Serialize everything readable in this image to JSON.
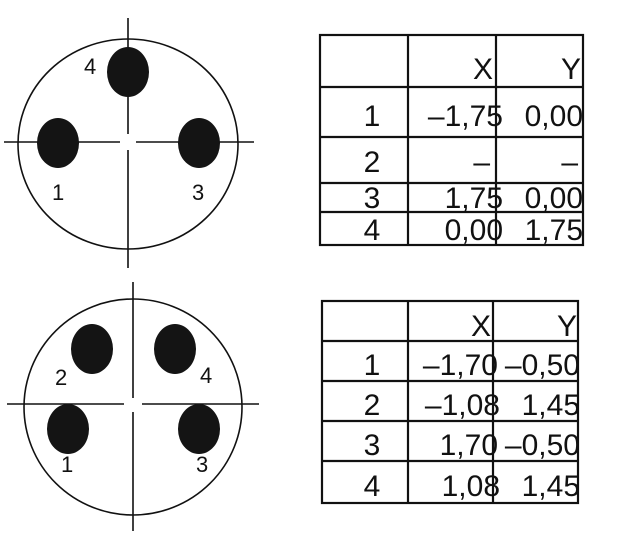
{
  "layouts": [
    {
      "pin_labels": {
        "p1": "1",
        "p3": "3",
        "p4": "4"
      },
      "table": {
        "headers": [
          "",
          "X",
          "Y"
        ],
        "rows": [
          [
            "1",
            "–1,75",
            "0,00"
          ],
          [
            "2",
            "–",
            "–"
          ],
          [
            "3",
            "1,75",
            "0,00"
          ],
          [
            "4",
            "0,00",
            "1,75"
          ]
        ]
      }
    },
    {
      "pin_labels": {
        "p1": "1",
        "p2": "2",
        "p3": "3",
        "p4": "4"
      },
      "table": {
        "headers": [
          "",
          "X",
          "Y"
        ],
        "rows": [
          [
            "1",
            "–1,70",
            "–0,50"
          ],
          [
            "2",
            "–1,08",
            "1,45"
          ],
          [
            "3",
            "1,70",
            "–0,50"
          ],
          [
            "4",
            "1,08",
            "1,45"
          ]
        ]
      }
    }
  ]
}
